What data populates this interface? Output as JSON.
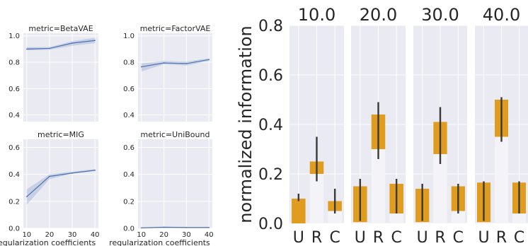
{
  "chart_data": [
    {
      "type": "line",
      "title": "metric=BetaVAE",
      "xlabel": "",
      "ylabel": "",
      "xlim": [
        8.5,
        41.5
      ],
      "ylim": [
        0.35,
        1.02
      ],
      "x": [
        10,
        20,
        30,
        40
      ],
      "xticks": [
        "10",
        "20",
        "30",
        "40"
      ],
      "yticks": [
        "0.4",
        "0.6",
        "0.8",
        "1.0"
      ],
      "show_xticks": false,
      "series": [
        {
          "values": [
            0.9,
            0.905,
            0.945,
            0.965
          ],
          "lower": [
            0.89,
            0.895,
            0.925,
            0.945
          ],
          "upper": [
            0.915,
            0.915,
            0.96,
            0.985
          ]
        }
      ],
      "color": "#4c72b0",
      "grid": true
    },
    {
      "type": "line",
      "title": "metric=FactorVAE",
      "xlabel": "",
      "ylabel": "",
      "xlim": [
        8.5,
        41.5
      ],
      "ylim": [
        0.35,
        1.02
      ],
      "x": [
        10,
        20,
        30,
        40
      ],
      "xticks": [
        "10",
        "20",
        "30",
        "40"
      ],
      "yticks": [
        "0.4",
        "0.6",
        "0.8",
        "1.0"
      ],
      "show_xticks": false,
      "series": [
        {
          "values": [
            0.765,
            0.795,
            0.79,
            0.82
          ],
          "lower": [
            0.73,
            0.785,
            0.775,
            0.81
          ],
          "upper": [
            0.79,
            0.81,
            0.805,
            0.83
          ]
        }
      ],
      "color": "#4c72b0",
      "grid": true
    },
    {
      "type": "line",
      "title": "metric=MIG",
      "xlabel": "regularization coefficients",
      "ylabel": "",
      "xlim": [
        8.5,
        41.5
      ],
      "ylim": [
        0.0,
        0.66
      ],
      "x": [
        10,
        20,
        30,
        40
      ],
      "xticks": [
        "10",
        "20",
        "30",
        "40"
      ],
      "yticks": [
        "0.0",
        "0.2",
        "0.4",
        "0.6"
      ],
      "show_xticks": true,
      "series": [
        {
          "values": [
            0.235,
            0.385,
            0.41,
            0.43
          ],
          "lower": [
            0.175,
            0.365,
            0.405,
            0.425
          ],
          "upper": [
            0.29,
            0.4,
            0.42,
            0.44
          ]
        }
      ],
      "color": "#4c72b0",
      "grid": true
    },
    {
      "type": "line",
      "title": "metric=UniBound",
      "xlabel": "regularization coefficients",
      "ylabel": "",
      "xlim": [
        8.5,
        41.5
      ],
      "ylim": [
        0.0,
        0.66
      ],
      "x": [
        10,
        20,
        30,
        40
      ],
      "xticks": [
        "10",
        "20",
        "30",
        "40"
      ],
      "yticks": [
        "0.0",
        "0.2",
        "0.4",
        "0.6"
      ],
      "show_xticks": true,
      "series": [
        {
          "values": [
            0.003,
            0.008,
            0.006,
            0.006
          ],
          "lower": [
            0.0,
            0.003,
            0.002,
            0.002
          ],
          "upper": [
            0.008,
            0.013,
            0.01,
            0.01
          ]
        }
      ],
      "color": "#4c72b0",
      "grid": true
    },
    {
      "type": "bar",
      "ylabel": "normalized information",
      "ylim": [
        0.0,
        0.8
      ],
      "yticks": [
        "0.0",
        "0.2",
        "0.4",
        "0.6",
        "0.8"
      ],
      "categories": [
        "U",
        "R",
        "C"
      ],
      "bar_color": "#e09c1f",
      "panels": [
        {
          "title": "10.0",
          "values": [
            0.1,
            0.25,
            0.09
          ],
          "base": [
            0.0,
            0.2,
            0.05
          ],
          "err": [
            [
              0.09,
              0.12
            ],
            [
              0.17,
              0.35
            ],
            [
              0.04,
              0.14
            ]
          ]
        },
        {
          "title": "20.0",
          "values": [
            0.15,
            0.44,
            0.16
          ],
          "base": [
            0.005,
            0.3,
            0.04
          ],
          "err": [
            [
              0.01,
              0.18
            ],
            [
              0.26,
              0.49
            ],
            [
              0.04,
              0.18
            ]
          ]
        },
        {
          "title": "30.0",
          "values": [
            0.14,
            0.41,
            0.15
          ],
          "base": [
            0.005,
            0.28,
            0.05
          ],
          "err": [
            [
              0.01,
              0.16
            ],
            [
              0.24,
              0.47
            ],
            [
              0.04,
              0.16
            ]
          ]
        },
        {
          "title": "40.0",
          "values": [
            0.165,
            0.5,
            0.165
          ],
          "base": [
            0.005,
            0.35,
            0.04
          ],
          "err": [
            [
              0.01,
              0.17
            ],
            [
              0.33,
              0.51
            ],
            [
              0.04,
              0.17
            ]
          ]
        }
      ],
      "grid": true
    }
  ]
}
